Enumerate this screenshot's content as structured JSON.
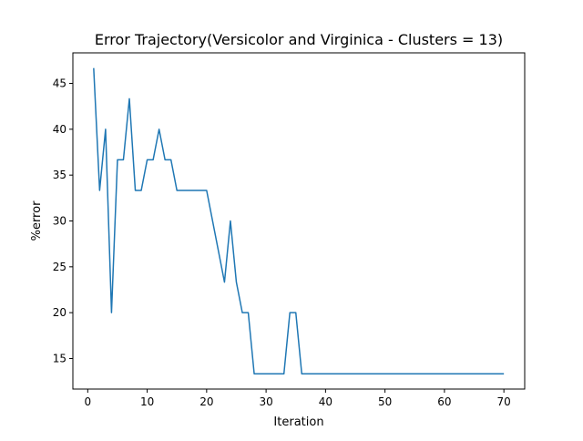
{
  "chart_data": {
    "type": "line",
    "title": "Error Trajectory(Versicolor and Virginica - Clusters = 13)",
    "xlabel": "Iteration",
    "ylabel": "%error",
    "xlim": [
      -2.5,
      73.5
    ],
    "ylim": [
      11.67,
      48.33
    ],
    "xticks": [
      0,
      10,
      20,
      30,
      40,
      50,
      60,
      70
    ],
    "xtick_labels": [
      "0",
      "10",
      "20",
      "30",
      "40",
      "50",
      "60",
      "70"
    ],
    "yticks": [
      15,
      20,
      25,
      30,
      35,
      40,
      45
    ],
    "ytick_labels": [
      "15",
      "20",
      "25",
      "30",
      "35",
      "40",
      "45"
    ],
    "grid": false,
    "legend": "none",
    "series": [
      {
        "color": "#1f77b4",
        "x": [
          1,
          2,
          3,
          4,
          5,
          6,
          7,
          8,
          9,
          10,
          11,
          12,
          13,
          14,
          15,
          16,
          17,
          18,
          19,
          20,
          21,
          22,
          23,
          24,
          25,
          26,
          27,
          28,
          29,
          30,
          31,
          32,
          33,
          34,
          35,
          36,
          37,
          38,
          39,
          40,
          41,
          42,
          43,
          44,
          45,
          46,
          47,
          48,
          49,
          50,
          51,
          52,
          53,
          54,
          55,
          56,
          57,
          58,
          59,
          60,
          61,
          62,
          63,
          64,
          65,
          66,
          67,
          68,
          69,
          70
        ],
        "y": [
          46.67,
          33.33,
          40.0,
          20.0,
          36.67,
          36.67,
          43.33,
          33.33,
          33.33,
          36.67,
          36.67,
          40.0,
          36.67,
          36.67,
          33.33,
          33.33,
          33.33,
          33.33,
          33.33,
          33.33,
          30.0,
          26.67,
          23.33,
          30.0,
          23.33,
          20.0,
          20.0,
          13.33,
          13.33,
          13.33,
          13.33,
          13.33,
          13.33,
          20.0,
          20.0,
          13.33,
          13.33,
          13.33,
          13.33,
          13.33,
          13.33,
          13.33,
          13.33,
          13.33,
          13.33,
          13.33,
          13.33,
          13.33,
          13.33,
          13.33,
          13.33,
          13.33,
          13.33,
          13.33,
          13.33,
          13.33,
          13.33,
          13.33,
          13.33,
          13.33,
          13.33,
          13.33,
          13.33,
          13.33,
          13.33,
          13.33,
          13.33,
          13.33,
          13.33,
          13.33
        ]
      }
    ]
  }
}
